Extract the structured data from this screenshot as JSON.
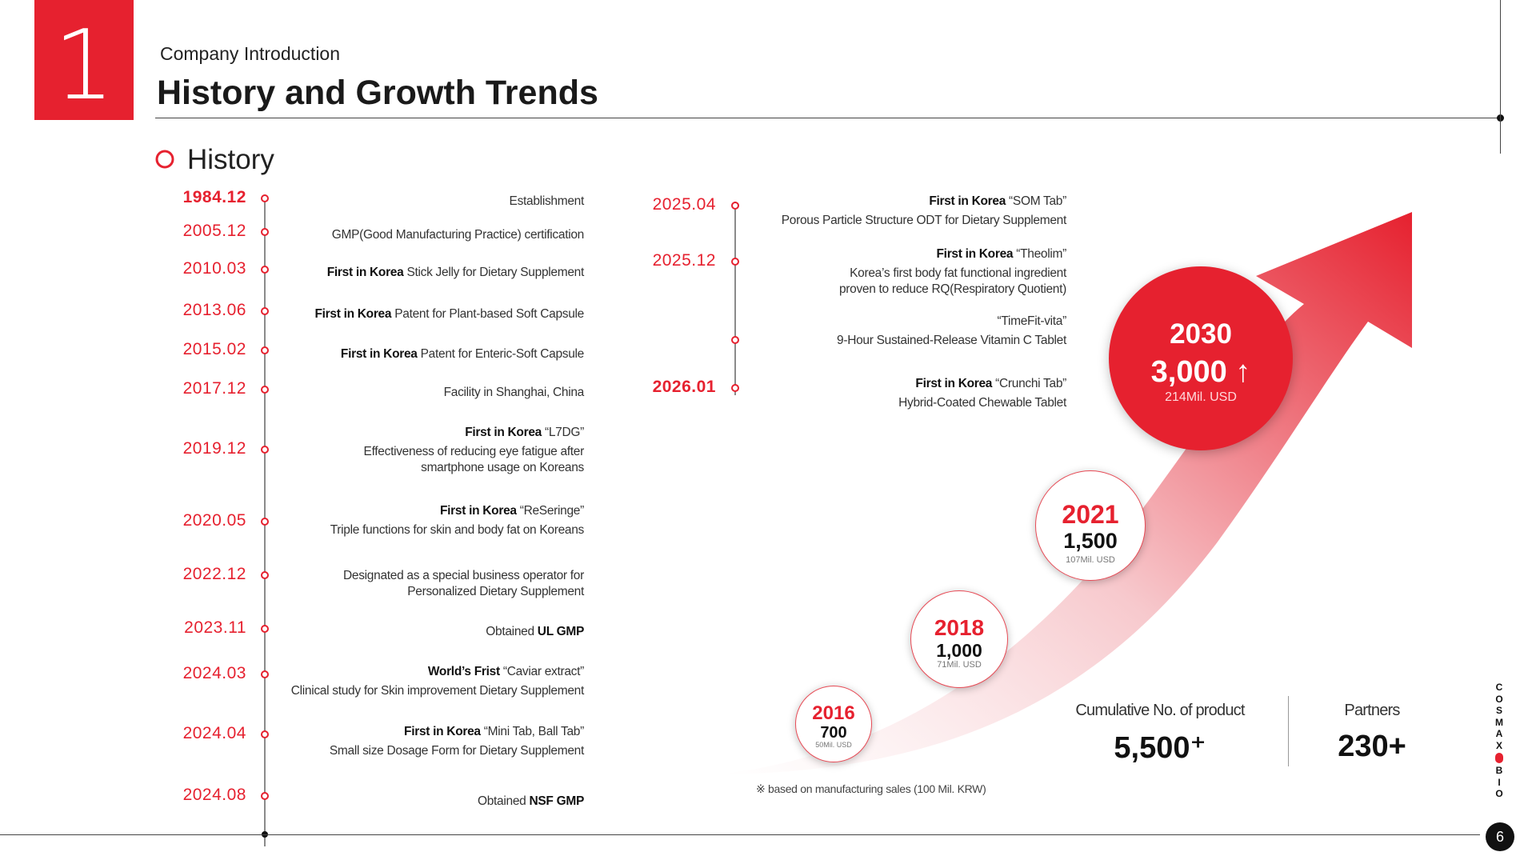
{
  "header": {
    "section_number": "1",
    "subtitle": "Company Introduction",
    "title": "History and Growth Trends",
    "history_label": "History"
  },
  "timeline_left": [
    {
      "date": "1984.12",
      "bold_date": true,
      "highlight": "",
      "text": "Establishment",
      "sub": ""
    },
    {
      "date": "2005.12",
      "bold_date": false,
      "highlight": "",
      "text": "GMP(Good Manufacturing Practice) certification",
      "sub": ""
    },
    {
      "date": "2010.03",
      "bold_date": false,
      "highlight": "First in Korea",
      "text": " Stick Jelly for Dietary Supplement",
      "sub": ""
    },
    {
      "date": "2013.06",
      "bold_date": false,
      "highlight": "First in Korea",
      "text": " Patent for Plant-based Soft Capsule",
      "sub": ""
    },
    {
      "date": "2015.02",
      "bold_date": false,
      "highlight": "First in Korea",
      "text": " Patent for Enteric-Soft Capsule",
      "sub": ""
    },
    {
      "date": "2017.12",
      "bold_date": false,
      "highlight": "",
      "text": "Facility in Shanghai, China",
      "sub": ""
    },
    {
      "date": "2019.12",
      "bold_date": false,
      "highlight": "First in Korea",
      "text": " “L7DG”",
      "sub": "Effectiveness of reducing eye fatigue after smartphone usage on Koreans"
    },
    {
      "date": "2020.05",
      "bold_date": false,
      "highlight": "First in Korea",
      "text": " “ReSeringe”",
      "sub": "Triple functions for skin and body fat on Koreans"
    },
    {
      "date": "2022.12",
      "bold_date": false,
      "highlight": "",
      "text": "Designated as a special business operator for Personalized Dietary Supplement",
      "sub": ""
    },
    {
      "date": "2023.11",
      "bold_date": false,
      "highlight": "",
      "text": "Obtained ",
      "tail": "UL GMP",
      "sub": ""
    },
    {
      "date": "2024.03",
      "bold_date": false,
      "highlight": "World’s Frist",
      "text": " “Caviar extract”",
      "sub": "Clinical study for Skin improvement Dietary Supplement"
    },
    {
      "date": "2024.04",
      "bold_date": false,
      "highlight": "First in Korea",
      "text": " “Mini Tab, Ball Tab”",
      "sub": "Small size Dosage Form for Dietary Supplement"
    },
    {
      "date": "2024.08",
      "bold_date": false,
      "highlight": "",
      "text": "Obtained ",
      "tail": "NSF GMP",
      "sub": ""
    }
  ],
  "timeline_right": [
    {
      "date": "2025.04",
      "highlight": "First in Korea",
      "text": " “SOM Tab”",
      "sub": "Porous Particle Structure ODT for Dietary Supplement"
    },
    {
      "date": "2025.12",
      "highlight": "First in Korea",
      "text": " “Theolim”",
      "sub": "Korea’s first body fat functional ingredient proven to reduce RQ(Respiratory Quotient)"
    },
    {
      "date": "",
      "highlight": "",
      "text": "“TimeFit-vita”",
      "sub": "9-Hour Sustained-Release Vitamin C Tablet"
    },
    {
      "date": "2026.01",
      "highlight": "First in Korea",
      "text": " “Crunchi Tab”",
      "sub": "Hybrid-Coated Chewable Tablet"
    }
  ],
  "growth": [
    {
      "year": "2016",
      "value": "700",
      "usd": "50Mil. USD"
    },
    {
      "year": "2018",
      "value": "1,000",
      "usd": "71Mil. USD"
    },
    {
      "year": "2021",
      "value": "1,500",
      "usd": "107Mil. USD"
    },
    {
      "year": "2030",
      "value": "3,000 ↑",
      "usd": "214Mil. USD"
    }
  ],
  "chart_note": "※ based on manufacturing sales (100 Mil. KRW)",
  "stats": {
    "products_label": "Cumulative No. of product",
    "products_value": "5,500⁺",
    "partners_label": "Partners",
    "partners_value": "230+"
  },
  "brand": [
    "C",
    "O",
    "S",
    "M",
    "A",
    "X",
    "B",
    "I",
    "O"
  ],
  "page_number": "6",
  "colors": {
    "accent": "#e6212f",
    "text": "#222222",
    "rule": "#444444"
  }
}
